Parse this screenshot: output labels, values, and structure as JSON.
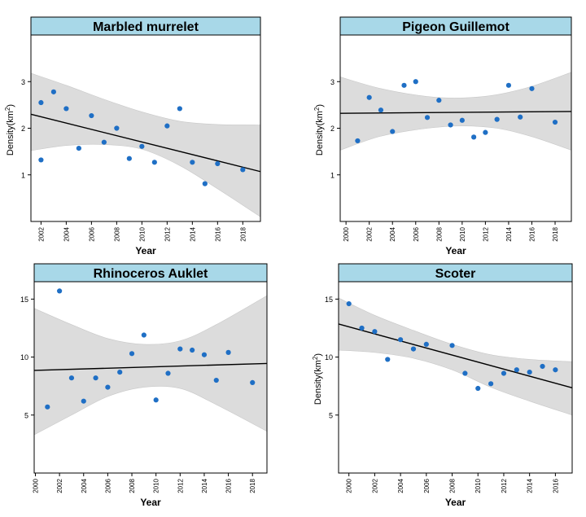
{
  "chart_data": [
    {
      "type": "scatter",
      "title": "Marbled murrelet",
      "xlabel": "Year",
      "ylabel": "Density(km",
      "ylabel_sup": "2",
      "ylabel_close": ")",
      "xlim": [
        2001.2,
        2019.4
      ],
      "ylim": [
        0,
        4
      ],
      "xticks": [
        "2002",
        "2004",
        "2006",
        "2008",
        "2010",
        "2012",
        "2014",
        "2016",
        "2018"
      ],
      "yticks": [
        "1",
        "2",
        "3"
      ],
      "x": [
        2002,
        2002,
        2003,
        2004,
        2005,
        2006,
        2007,
        2008,
        2009,
        2010,
        2011,
        2012,
        2013,
        2014,
        2015,
        2016,
        2018
      ],
      "y": [
        2.55,
        1.32,
        2.78,
        2.42,
        1.57,
        2.27,
        1.7,
        2.0,
        1.35,
        1.61,
        1.27,
        2.05,
        2.42,
        1.27,
        0.81,
        1.24,
        1.11
      ],
      "trend": [
        [
          2001.2,
          2.3
        ],
        [
          2019.4,
          1.07
        ]
      ],
      "band_upper": [
        [
          2001.2,
          3.18
        ],
        [
          2004,
          2.92
        ],
        [
          2007,
          2.62
        ],
        [
          2010,
          2.35
        ],
        [
          2013,
          2.15
        ],
        [
          2016,
          2.08
        ],
        [
          2019.4,
          2.07
        ]
      ],
      "band_lower": [
        [
          2001.2,
          1.52
        ],
        [
          2004,
          1.63
        ],
        [
          2007,
          1.65
        ],
        [
          2010,
          1.55
        ],
        [
          2013,
          1.2
        ],
        [
          2016,
          0.7
        ],
        [
          2019.4,
          0.1
        ]
      ],
      "point_color": "#1f6fc5",
      "band_color": "#dcdcdc",
      "title_bg": "#a8d8e8"
    },
    {
      "type": "scatter",
      "title": "Pigeon Guillemot",
      "xlabel": "Year",
      "ylabel": "Density(km",
      "ylabel_sup": "2",
      "ylabel_close": ")",
      "xlim": [
        1999.5,
        2019.4
      ],
      "ylim": [
        0,
        4
      ],
      "xticks": [
        "2000",
        "2002",
        "2004",
        "2006",
        "2008",
        "2010",
        "2012",
        "2014",
        "2016",
        "2018"
      ],
      "yticks": [
        "1",
        "2",
        "3"
      ],
      "x": [
        2001,
        2002,
        2003,
        2004,
        2005,
        2006,
        2007,
        2008,
        2009,
        2010,
        2011,
        2012,
        2013,
        2014,
        2015,
        2016,
        2018
      ],
      "y": [
        1.73,
        2.66,
        2.39,
        1.93,
        2.92,
        3.0,
        2.23,
        2.6,
        2.07,
        2.17,
        1.81,
        1.91,
        2.19,
        2.92,
        2.24,
        2.85,
        2.13
      ],
      "trend": [
        [
          1999.5,
          2.32
        ],
        [
          2019.4,
          2.36
        ]
      ],
      "band_upper": [
        [
          1999.5,
          3.1
        ],
        [
          2003,
          2.85
        ],
        [
          2007,
          2.68
        ],
        [
          2010,
          2.65
        ],
        [
          2013,
          2.72
        ],
        [
          2016,
          2.9
        ],
        [
          2019.4,
          3.2
        ]
      ],
      "band_lower": [
        [
          1999.5,
          1.53
        ],
        [
          2003,
          1.83
        ],
        [
          2007,
          2.0
        ],
        [
          2010,
          2.05
        ],
        [
          2013,
          2.0
        ],
        [
          2016,
          1.82
        ],
        [
          2019.4,
          1.53
        ]
      ],
      "point_color": "#1f6fc5",
      "band_color": "#dcdcdc",
      "title_bg": "#a8d8e8"
    },
    {
      "type": "scatter",
      "title": "Rhinoceros Auklet",
      "xlabel": "Year",
      "ylabel": "",
      "ylabel_sup": "",
      "ylabel_close": "",
      "xlim": [
        1999.9,
        2019.2
      ],
      "ylim": [
        0,
        16.5
      ],
      "xticks": [
        "2000",
        "2002",
        "2004",
        "2006",
        "2008",
        "2010",
        "2012",
        "2014",
        "2016",
        "2018"
      ],
      "yticks": [
        "5",
        "10",
        "15"
      ],
      "x": [
        2001,
        2002,
        2003,
        2004,
        2005,
        2006,
        2007,
        2008,
        2009,
        2010,
        2011,
        2012,
        2013,
        2014,
        2015,
        2016,
        2018
      ],
      "y": [
        5.7,
        15.7,
        8.2,
        6.2,
        8.2,
        7.4,
        8.7,
        10.3,
        11.9,
        6.3,
        8.6,
        10.7,
        10.6,
        10.2,
        8.0,
        10.4,
        7.8
      ],
      "trend": [
        [
          1999.9,
          8.85
        ],
        [
          2019.2,
          9.45
        ]
      ],
      "band_upper": [
        [
          1999.9,
          14.2
        ],
        [
          2003,
          12.8
        ],
        [
          2006,
          11.6
        ],
        [
          2009,
          11.1
        ],
        [
          2012,
          11.4
        ],
        [
          2015,
          12.8
        ],
        [
          2019.2,
          15.3
        ]
      ],
      "band_lower": [
        [
          1999.9,
          3.3
        ],
        [
          2003,
          5.0
        ],
        [
          2006,
          6.6
        ],
        [
          2009,
          7.4
        ],
        [
          2012,
          7.3
        ],
        [
          2015,
          5.9
        ],
        [
          2019.2,
          3.6
        ]
      ],
      "point_color": "#1f6fc5",
      "band_color": "#dcdcdc",
      "title_bg": "#a8d8e8"
    },
    {
      "type": "scatter",
      "title": "Scoter",
      "xlabel": "Year",
      "ylabel": "Density(km",
      "ylabel_sup": "2",
      "ylabel_close": ")",
      "xlim": [
        1999.2,
        2017.3
      ],
      "ylim": [
        0,
        16.5
      ],
      "xticks": [
        "2000",
        "2002",
        "2004",
        "2006",
        "2008",
        "2010",
        "2012",
        "2014",
        "2016"
      ],
      "yticks": [
        "5",
        "10",
        "15"
      ],
      "x": [
        2000,
        2001,
        2002,
        2003,
        2004,
        2005,
        2006,
        2008,
        2009,
        2010,
        2011,
        2012,
        2013,
        2014,
        2015,
        2016
      ],
      "y": [
        14.6,
        12.5,
        12.2,
        9.8,
        11.5,
        10.7,
        11.1,
        11.0,
        8.6,
        7.3,
        7.7,
        8.6,
        8.9,
        8.7,
        9.2,
        8.9
      ],
      "trend": [
        [
          1999.2,
          12.85
        ],
        [
          2017.3,
          7.35
        ]
      ],
      "band_upper": [
        [
          1999.2,
          15.1
        ],
        [
          2002,
          13.6
        ],
        [
          2005,
          12.3
        ],
        [
          2008,
          11.1
        ],
        [
          2011,
          10.2
        ],
        [
          2014,
          9.8
        ],
        [
          2017.3,
          9.6
        ]
      ],
      "band_lower": [
        [
          1999.2,
          10.6
        ],
        [
          2002,
          10.4
        ],
        [
          2005,
          9.9
        ],
        [
          2008,
          8.9
        ],
        [
          2011,
          7.4
        ],
        [
          2014,
          6.2
        ],
        [
          2017.3,
          5.0
        ]
      ],
      "point_color": "#1f6fc5",
      "band_color": "#dcdcdc",
      "title_bg": "#a8d8e8"
    }
  ]
}
